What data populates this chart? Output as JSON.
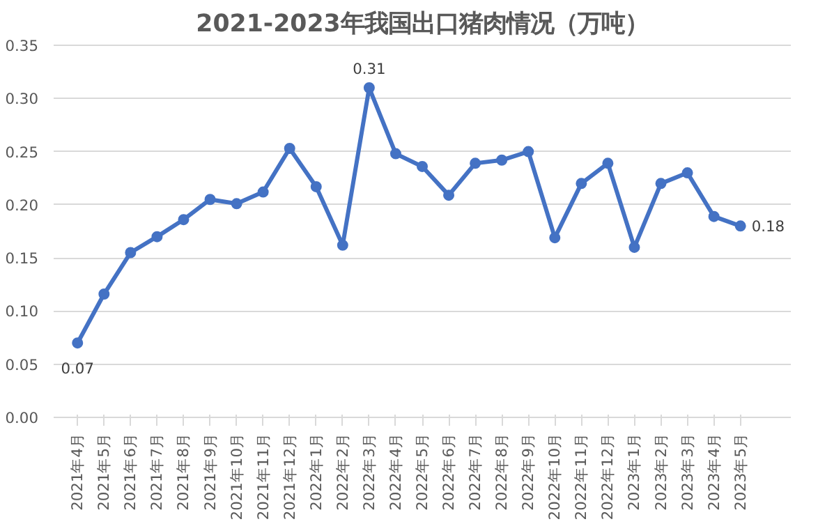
{
  "chart_data": {
    "type": "line",
    "title": "2021-2023年我国出口猪肉情况（万吨）",
    "categories": [
      "2021年4月",
      "2021年5月",
      "2021年6月",
      "2021年7月",
      "2021年8月",
      "2021年9月",
      "2021年10月",
      "2021年11月",
      "2021年12月",
      "2022年1月",
      "2022年2月",
      "2022年3月",
      "2022年4月",
      "2022年5月",
      "2022年6月",
      "2022年7月",
      "2022年8月",
      "2022年9月",
      "2022年10月",
      "2022年11月",
      "2022年12月",
      "2023年1月",
      "2023年2月",
      "2023年3月",
      "2023年4月",
      "2023年5月"
    ],
    "series": [
      {
        "color": "#4472c4",
        "values": [
          0.07,
          0.116,
          0.155,
          0.17,
          0.186,
          0.205,
          0.201,
          0.212,
          0.253,
          0.217,
          0.162,
          0.31,
          0.248,
          0.236,
          0.209,
          0.239,
          0.242,
          0.25,
          0.169,
          0.22,
          0.239,
          0.16,
          0.22,
          0.23,
          0.189,
          0.18
        ],
        "value_labels": [
          "0.07",
          null,
          null,
          null,
          null,
          null,
          null,
          null,
          null,
          null,
          null,
          "0.31",
          null,
          null,
          null,
          null,
          null,
          null,
          null,
          null,
          null,
          null,
          null,
          null,
          null,
          "0.18"
        ]
      }
    ],
    "ylim": [
      0,
      0.35
    ],
    "yticks": [
      "0.00",
      "0.05",
      "0.10",
      "0.15",
      "0.20",
      "0.25",
      "0.30",
      "0.35"
    ],
    "grid": "y",
    "marker": "circle",
    "line_style": "solid"
  }
}
